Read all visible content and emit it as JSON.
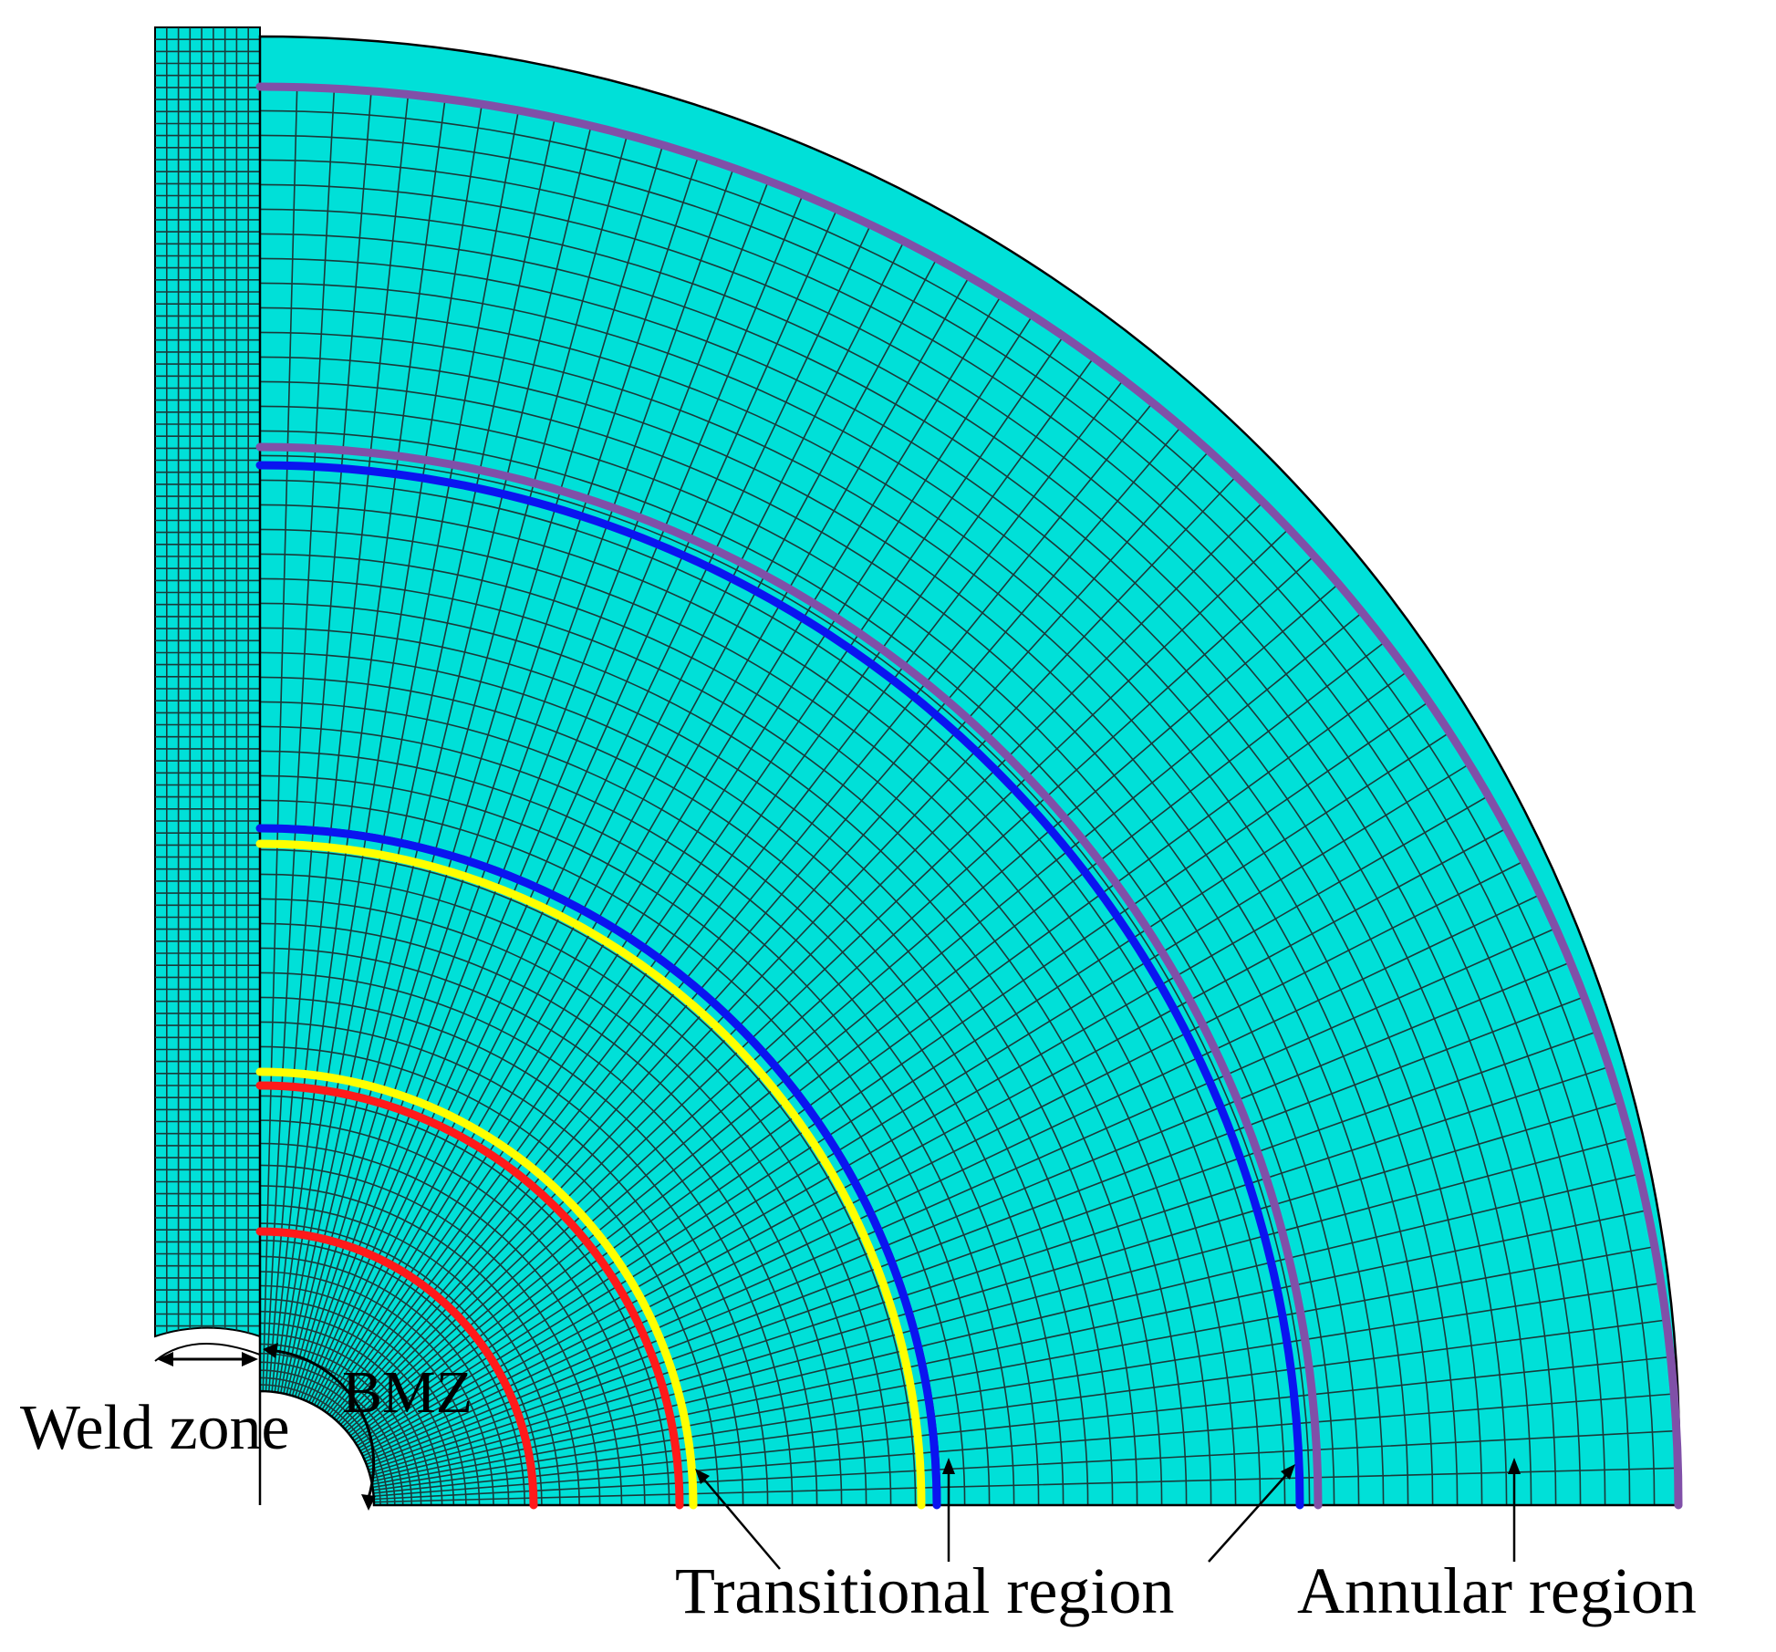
{
  "labels": {
    "weld_zone": "Weld zone",
    "bmz": "BMZ",
    "transitional_region": "Transitional region",
    "annular_region": "Annular region"
  },
  "colors": {
    "mesh_fill": "#00E0D8",
    "mesh_line": "#1a3a3a",
    "outline": "#000000",
    "red_ring": "#FF1A1A",
    "yellow_ring": "#FFFF00",
    "blue_ring": "#0A14F0",
    "purple_ring": "#8050A8",
    "background": "#FFFFFF"
  },
  "mesh": {
    "radial_divisions": 60,
    "weld_zone_columns": 9,
    "weld_zone_rows": 110
  }
}
